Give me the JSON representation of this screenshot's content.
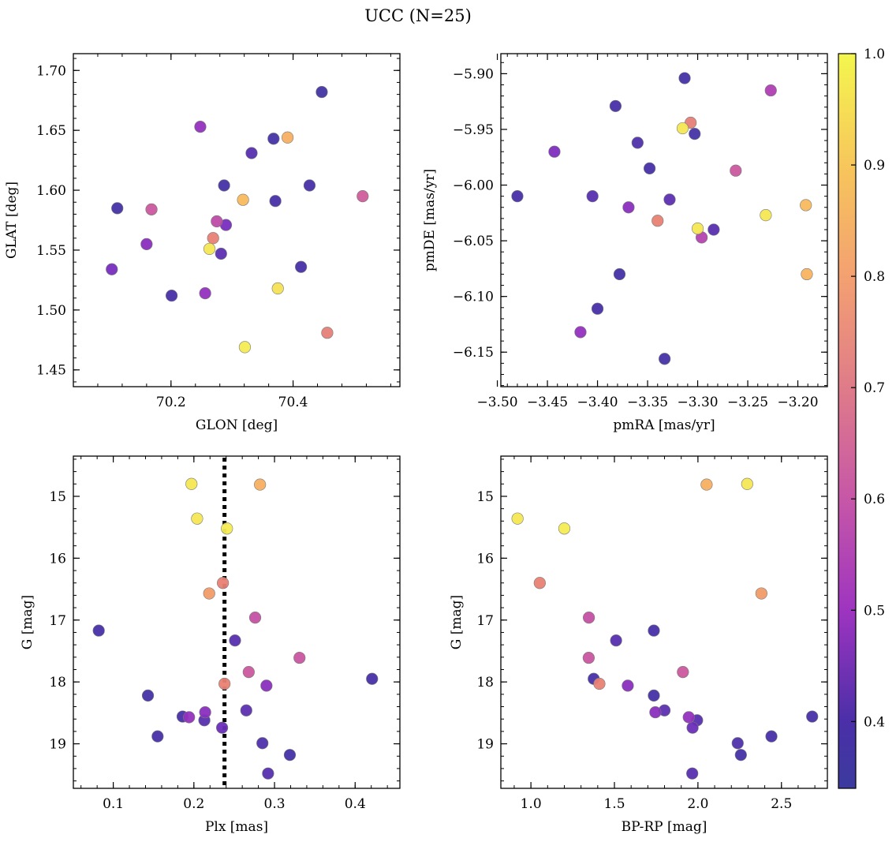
{
  "title": "UCC (N=25)",
  "colorbar": {
    "min": 0.34,
    "max": 1.0,
    "ticks": [
      "0.4",
      "0.5",
      "0.6",
      "0.7",
      "0.8",
      "0.9",
      "1.0"
    ],
    "tick_values": [
      0.4,
      0.5,
      0.6,
      0.7,
      0.8,
      0.9,
      1.0
    ],
    "colormap": "plasma"
  },
  "chart_data": [
    {
      "type": "scatter",
      "title": "",
      "xlabel": "GLON [deg]",
      "ylabel": "GLAT [deg]",
      "xlim": [
        70.04,
        70.575
      ],
      "ylim": [
        1.436,
        1.714
      ],
      "x_ticks": [
        70.2,
        70.4
      ],
      "x_tick_labels": [
        "70.2",
        "70.4"
      ],
      "y_ticks": [
        1.45,
        1.5,
        1.55,
        1.6,
        1.65,
        1.7
      ],
      "y_tick_labels": [
        "1.45",
        "1.50",
        "1.55",
        "1.60",
        "1.65",
        "1.70"
      ],
      "y_inverted": false,
      "points": [
        {
          "x": 70.447,
          "y": 1.682,
          "c": 0.37
        },
        {
          "x": 70.248,
          "y": 1.653,
          "c": 0.52
        },
        {
          "x": 70.391,
          "y": 1.644,
          "c": 0.86
        },
        {
          "x": 70.368,
          "y": 1.643,
          "c": 0.38
        },
        {
          "x": 70.332,
          "y": 1.631,
          "c": 0.42
        },
        {
          "x": 70.287,
          "y": 1.604,
          "c": 0.39
        },
        {
          "x": 70.427,
          "y": 1.604,
          "c": 0.4
        },
        {
          "x": 70.514,
          "y": 1.595,
          "c": 0.64
        },
        {
          "x": 70.318,
          "y": 1.592,
          "c": 0.88
        },
        {
          "x": 70.371,
          "y": 1.591,
          "c": 0.4
        },
        {
          "x": 70.112,
          "y": 1.585,
          "c": 0.39
        },
        {
          "x": 70.168,
          "y": 1.584,
          "c": 0.63
        },
        {
          "x": 70.275,
          "y": 1.574,
          "c": 0.6
        },
        {
          "x": 70.29,
          "y": 1.571,
          "c": 0.47
        },
        {
          "x": 70.269,
          "y": 1.56,
          "c": 0.77
        },
        {
          "x": 70.16,
          "y": 1.555,
          "c": 0.5
        },
        {
          "x": 70.263,
          "y": 1.551,
          "c": 0.97
        },
        {
          "x": 70.282,
          "y": 1.547,
          "c": 0.43
        },
        {
          "x": 70.413,
          "y": 1.536,
          "c": 0.4
        },
        {
          "x": 70.103,
          "y": 1.534,
          "c": 0.47
        },
        {
          "x": 70.375,
          "y": 1.518,
          "c": 0.96
        },
        {
          "x": 70.256,
          "y": 1.514,
          "c": 0.52
        },
        {
          "x": 70.201,
          "y": 1.512,
          "c": 0.4
        },
        {
          "x": 70.456,
          "y": 1.481,
          "c": 0.76
        },
        {
          "x": 70.321,
          "y": 1.469,
          "c": 0.98
        }
      ]
    },
    {
      "type": "scatter",
      "title": "",
      "xlabel": "pmRA [mas/yr]",
      "ylabel": "pmDE [mas/yr]",
      "xlim": [
        -3.4965,
        -3.1705
      ],
      "ylim": [
        -6.181,
        -5.882
      ],
      "x_ticks": [
        -3.5,
        -3.45,
        -3.4,
        -3.35,
        -3.3,
        -3.25,
        -3.2
      ],
      "x_tick_labels": [
        "−3.50",
        "−3.45",
        "−3.40",
        "−3.35",
        "−3.30",
        "−3.25",
        "−3.20"
      ],
      "y_ticks": [
        -6.15,
        -6.1,
        -6.05,
        -6.0,
        -5.95,
        -5.9
      ],
      "y_tick_labels": [
        "−6.15",
        "−6.10",
        "−6.05",
        "−6.00",
        "−5.95",
        "−5.90"
      ],
      "y_inverted": false,
      "points": [
        {
          "x": -3.313,
          "y": -5.904,
          "c": 0.39
        },
        {
          "x": -3.227,
          "y": -5.915,
          "c": 0.57
        },
        {
          "x": -3.382,
          "y": -5.929,
          "c": 0.4
        },
        {
          "x": -3.307,
          "y": -5.944,
          "c": 0.76
        },
        {
          "x": -3.315,
          "y": -5.949,
          "c": 0.97
        },
        {
          "x": -3.303,
          "y": -5.954,
          "c": 0.38
        },
        {
          "x": -3.36,
          "y": -5.962,
          "c": 0.41
        },
        {
          "x": -3.443,
          "y": -5.97,
          "c": 0.48
        },
        {
          "x": -3.348,
          "y": -5.985,
          "c": 0.4
        },
        {
          "x": -3.262,
          "y": -5.987,
          "c": 0.63
        },
        {
          "x": -3.48,
          "y": -6.01,
          "c": 0.4
        },
        {
          "x": -3.405,
          "y": -6.01,
          "c": 0.42
        },
        {
          "x": -3.328,
          "y": -6.013,
          "c": 0.43
        },
        {
          "x": -3.369,
          "y": -6.02,
          "c": 0.5
        },
        {
          "x": -3.192,
          "y": -6.018,
          "c": 0.88
        },
        {
          "x": -3.232,
          "y": -6.027,
          "c": 0.97
        },
        {
          "x": -3.34,
          "y": -6.032,
          "c": 0.77
        },
        {
          "x": -3.3,
          "y": -6.039,
          "c": 0.97
        },
        {
          "x": -3.284,
          "y": -6.04,
          "c": 0.42
        },
        {
          "x": -3.296,
          "y": -6.047,
          "c": 0.58
        },
        {
          "x": -3.378,
          "y": -6.08,
          "c": 0.39
        },
        {
          "x": -3.191,
          "y": -6.08,
          "c": 0.87
        },
        {
          "x": -3.4,
          "y": -6.111,
          "c": 0.4
        },
        {
          "x": -3.417,
          "y": -6.132,
          "c": 0.52
        },
        {
          "x": -3.333,
          "y": -6.156,
          "c": 0.38
        }
      ]
    },
    {
      "type": "scatter",
      "title": "",
      "xlabel": "Plx [mas]",
      "ylabel": "G [mag]",
      "xlim": [
        0.0505,
        0.4555
      ],
      "ylim": [
        19.72,
        14.35
      ],
      "x_ticks": [
        0.1,
        0.2,
        0.3,
        0.4
      ],
      "x_tick_labels": [
        "0.1",
        "0.2",
        "0.3",
        "0.4"
      ],
      "y_ticks": [
        15,
        16,
        17,
        18,
        19
      ],
      "y_tick_labels": [
        "15",
        "16",
        "17",
        "18",
        "19"
      ],
      "y_inverted": true,
      "vline": {
        "x": 0.238,
        "style": "dotted",
        "color": "#000000"
      },
      "points": [
        {
          "x": 0.197,
          "y": 14.8,
          "c": 0.97
        },
        {
          "x": 0.282,
          "y": 14.81,
          "c": 0.86
        },
        {
          "x": 0.204,
          "y": 15.36,
          "c": 0.97
        },
        {
          "x": 0.241,
          "y": 15.52,
          "c": 0.98
        },
        {
          "x": 0.236,
          "y": 16.4,
          "c": 0.77
        },
        {
          "x": 0.219,
          "y": 16.57,
          "c": 0.82
        },
        {
          "x": 0.276,
          "y": 16.96,
          "c": 0.61
        },
        {
          "x": 0.082,
          "y": 17.17,
          "c": 0.4
        },
        {
          "x": 0.251,
          "y": 17.33,
          "c": 0.42
        },
        {
          "x": 0.331,
          "y": 17.61,
          "c": 0.62
        },
        {
          "x": 0.268,
          "y": 17.84,
          "c": 0.63
        },
        {
          "x": 0.421,
          "y": 17.95,
          "c": 0.4
        },
        {
          "x": 0.238,
          "y": 18.03,
          "c": 0.77
        },
        {
          "x": 0.29,
          "y": 18.06,
          "c": 0.5
        },
        {
          "x": 0.143,
          "y": 18.22,
          "c": 0.39
        },
        {
          "x": 0.265,
          "y": 18.46,
          "c": 0.43
        },
        {
          "x": 0.214,
          "y": 18.49,
          "c": 0.5
        },
        {
          "x": 0.186,
          "y": 18.56,
          "c": 0.4
        },
        {
          "x": 0.194,
          "y": 18.57,
          "c": 0.52
        },
        {
          "x": 0.213,
          "y": 18.62,
          "c": 0.42
        },
        {
          "x": 0.235,
          "y": 18.74,
          "c": 0.45
        },
        {
          "x": 0.155,
          "y": 18.88,
          "c": 0.4
        },
        {
          "x": 0.285,
          "y": 18.99,
          "c": 0.41
        },
        {
          "x": 0.319,
          "y": 19.18,
          "c": 0.39
        },
        {
          "x": 0.292,
          "y": 19.48,
          "c": 0.42
        }
      ]
    },
    {
      "type": "scatter",
      "title": "",
      "xlabel": "BP-RP [mag]",
      "ylabel": "G [mag]",
      "xlim": [
        0.82,
        2.775
      ],
      "ylim": [
        19.72,
        14.35
      ],
      "x_ticks": [
        1.0,
        1.5,
        2.0,
        2.5
      ],
      "x_tick_labels": [
        "1.0",
        "1.5",
        "2.0",
        "2.5"
      ],
      "y_ticks": [
        15,
        16,
        17,
        18,
        19
      ],
      "y_tick_labels": [
        "15",
        "16",
        "17",
        "18",
        "19"
      ],
      "y_inverted": true,
      "points": [
        {
          "x": 2.295,
          "y": 14.8,
          "c": 0.97
        },
        {
          "x": 2.052,
          "y": 14.81,
          "c": 0.86
        },
        {
          "x": 0.92,
          "y": 15.36,
          "c": 0.97
        },
        {
          "x": 1.2,
          "y": 15.52,
          "c": 0.98
        },
        {
          "x": 1.053,
          "y": 16.4,
          "c": 0.77
        },
        {
          "x": 2.38,
          "y": 16.57,
          "c": 0.82
        },
        {
          "x": 1.347,
          "y": 16.96,
          "c": 0.61
        },
        {
          "x": 1.736,
          "y": 17.17,
          "c": 0.4
        },
        {
          "x": 1.51,
          "y": 17.33,
          "c": 0.42
        },
        {
          "x": 1.346,
          "y": 17.61,
          "c": 0.62
        },
        {
          "x": 1.91,
          "y": 17.84,
          "c": 0.63
        },
        {
          "x": 1.376,
          "y": 17.95,
          "c": 0.4
        },
        {
          "x": 1.41,
          "y": 18.03,
          "c": 0.77
        },
        {
          "x": 1.58,
          "y": 18.06,
          "c": 0.5
        },
        {
          "x": 1.736,
          "y": 18.22,
          "c": 0.39
        },
        {
          "x": 1.8,
          "y": 18.46,
          "c": 0.43
        },
        {
          "x": 1.745,
          "y": 18.49,
          "c": 0.5
        },
        {
          "x": 2.684,
          "y": 18.56,
          "c": 0.4
        },
        {
          "x": 1.945,
          "y": 18.57,
          "c": 0.52
        },
        {
          "x": 1.995,
          "y": 18.62,
          "c": 0.42
        },
        {
          "x": 1.968,
          "y": 18.74,
          "c": 0.45
        },
        {
          "x": 2.44,
          "y": 18.88,
          "c": 0.4
        },
        {
          "x": 2.238,
          "y": 18.99,
          "c": 0.41
        },
        {
          "x": 2.257,
          "y": 19.18,
          "c": 0.39
        },
        {
          "x": 1.966,
          "y": 19.48,
          "c": 0.42
        }
      ]
    }
  ]
}
